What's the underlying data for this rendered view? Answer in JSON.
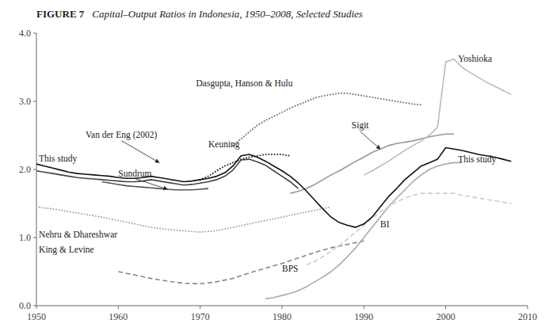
{
  "chart_data": {
    "type": "line",
    "title": "FIGURE 7",
    "subtitle": "Capital–Output Ratios in Indonesia, 1950–2008, Selected Studies",
    "xlim": [
      1950,
      2010
    ],
    "xticks": [
      1950,
      1960,
      1970,
      1980,
      1990,
      2000,
      2010
    ],
    "ylim": [
      0.0,
      4.0
    ],
    "yticks": [
      {
        "value": 0.0,
        "label": "0.0"
      },
      {
        "value": 1.0,
        "label": "1.0"
      },
      {
        "value": 2.0,
        "label": "2.0"
      },
      {
        "value": 3.0,
        "label": "3.0"
      },
      {
        "value": 4.0,
        "label": "4.0"
      }
    ],
    "grid": false,
    "series": [
      {
        "color": "#aaaaaa",
        "line_style": "dotted",
        "x": [
          1950,
          1952,
          1954,
          1956,
          1958,
          1960,
          1962,
          1964,
          1966,
          1968,
          1970,
          1972,
          1974,
          1976,
          1978,
          1980,
          1982,
          1984,
          1986
        ],
        "values": [
          1.45,
          1.42,
          1.38,
          1.34,
          1.3,
          1.25,
          1.2,
          1.15,
          1.12,
          1.1,
          1.08,
          1.1,
          1.15,
          1.2,
          1.25,
          1.3,
          1.35,
          1.4,
          1.45
        ]
      },
      {
        "color": "#888888",
        "line_style": "dashed",
        "x": [
          1960,
          1962,
          1964,
          1966,
          1968,
          1970,
          1972,
          1974,
          1976,
          1978,
          1980,
          1982,
          1984,
          1986,
          1988,
          1990
        ],
        "values": [
          0.5,
          0.45,
          0.4,
          0.36,
          0.33,
          0.32,
          0.35,
          0.4,
          0.48,
          0.55,
          0.62,
          0.7,
          0.78,
          0.85,
          0.9,
          0.95
        ]
      },
      {
        "color": "#aaaaaa",
        "line_style": "solid",
        "x": [
          1978,
          1979,
          1980,
          1981,
          1982,
          1983,
          1984,
          1985,
          1986,
          1987,
          1988,
          1989,
          1990,
          1991,
          1992,
          1993,
          1994,
          1995,
          1996,
          1997,
          1998,
          1999,
          2000,
          2001,
          2002
        ],
        "values": [
          0.1,
          0.12,
          0.15,
          0.18,
          0.22,
          0.28,
          0.35,
          0.42,
          0.5,
          0.6,
          0.72,
          0.85,
          1.0,
          1.15,
          1.3,
          1.45,
          1.58,
          1.7,
          1.82,
          1.92,
          2.0,
          2.05,
          2.08,
          2.1,
          2.1
        ]
      },
      {
        "color": "#cccccc",
        "line_style": "dashed",
        "x": [
          1983,
          1984,
          1985,
          1986,
          1987,
          1988,
          1989,
          1990,
          1991,
          1992,
          1993,
          1994,
          1995,
          1996,
          1997,
          1998,
          1999,
          2000,
          2001,
          2002,
          2003,
          2004,
          2005,
          2006,
          2007,
          2008
        ],
        "values": [
          0.6,
          0.65,
          0.72,
          0.8,
          0.88,
          0.98,
          1.08,
          1.18,
          1.28,
          1.38,
          1.45,
          1.52,
          1.58,
          1.62,
          1.65,
          1.65,
          1.65,
          1.65,
          1.65,
          1.62,
          1.6,
          1.58,
          1.56,
          1.54,
          1.52,
          1.5
        ]
      },
      {
        "color": "#777777",
        "line_style": "dotted",
        "x": [
          1974,
          1975,
          1976,
          1977,
          1978,
          1979,
          1980,
          1981,
          1982,
          1983,
          1984,
          1985,
          1986,
          1987,
          1988,
          1989,
          1990,
          1991,
          1992,
          1993,
          1994,
          1995,
          1996,
          1997
        ],
        "values": [
          2.35,
          2.45,
          2.55,
          2.65,
          2.72,
          2.78,
          2.84,
          2.9,
          2.95,
          3.0,
          3.05,
          3.08,
          3.1,
          3.12,
          3.12,
          3.1,
          3.08,
          3.06,
          3.04,
          3.02,
          3.0,
          2.98,
          2.96,
          2.95
        ]
      },
      {
        "color": "#555555",
        "line_style": "solid",
        "x": [
          1958,
          1959,
          1960,
          1961,
          1962,
          1963,
          1964,
          1965,
          1966,
          1967,
          1968,
          1969,
          1970,
          1971
        ],
        "values": [
          1.82,
          1.8,
          1.78,
          1.76,
          1.75,
          1.74,
          1.73,
          1.72,
          1.71,
          1.7,
          1.7,
          1.7,
          1.71,
          1.72
        ]
      },
      {
        "color": "#444444",
        "line_style": "solid",
        "x": [
          1950,
          1951,
          1952,
          1953,
          1954,
          1955,
          1956,
          1957,
          1958,
          1959,
          1960,
          1961,
          1962,
          1963,
          1964,
          1965,
          1966,
          1967,
          1968,
          1969,
          1970,
          1971,
          1972,
          1973,
          1974,
          1975,
          1976,
          1977,
          1978,
          1979,
          1980,
          1981,
          1982
        ],
        "values": [
          1.98,
          1.96,
          1.94,
          1.92,
          1.9,
          1.88,
          1.87,
          1.86,
          1.85,
          1.84,
          1.83,
          1.82,
          1.82,
          1.83,
          1.85,
          1.83,
          1.81,
          1.79,
          1.77,
          1.78,
          1.8,
          1.82,
          1.85,
          1.9,
          1.99,
          2.14,
          2.15,
          2.11,
          2.06,
          1.98,
          1.9,
          1.82,
          1.72
        ]
      },
      {
        "color": "#333333",
        "line_style": "dotted",
        "x": [
          1970,
          1971,
          1972,
          1973,
          1974,
          1975,
          1976,
          1977,
          1978,
          1979,
          1980,
          1981
        ],
        "values": [
          1.85,
          1.9,
          1.98,
          2.05,
          2.1,
          2.15,
          2.18,
          2.2,
          2.22,
          2.22,
          2.22,
          2.2
        ]
      },
      {
        "color": "#999999",
        "line_style": "solid",
        "x": [
          1981,
          1982,
          1983,
          1984,
          1985,
          1986,
          1987,
          1988,
          1989,
          1990,
          1991,
          1992,
          1993,
          1994,
          1995,
          1996,
          1997,
          1998,
          1999,
          2000,
          2001
        ],
        "values": [
          1.65,
          1.68,
          1.72,
          1.78,
          1.85,
          1.92,
          1.98,
          2.05,
          2.12,
          2.18,
          2.25,
          2.3,
          2.35,
          2.38,
          2.4,
          2.42,
          2.45,
          2.48,
          2.5,
          2.52,
          2.52
        ]
      },
      {
        "color": "#bbbbbb",
        "line_style": "solid",
        "x": [
          1990,
          1991,
          1992,
          1993,
          1994,
          1995,
          1996,
          1997,
          1998,
          1999,
          2000,
          2001,
          2002,
          2003,
          2004,
          2005,
          2006,
          2007,
          2008
        ],
        "values": [
          1.92,
          1.98,
          2.05,
          2.12,
          2.2,
          2.28,
          2.35,
          2.42,
          2.5,
          2.62,
          3.58,
          3.62,
          3.5,
          3.42,
          3.35,
          3.28,
          3.22,
          3.16,
          3.1
        ]
      },
      {
        "color": "#111111",
        "line_style": "solid",
        "x": [
          1950,
          1951,
          1952,
          1953,
          1954,
          1955,
          1956,
          1957,
          1958,
          1959,
          1960,
          1961,
          1962,
          1963,
          1964,
          1965,
          1966,
          1967,
          1968,
          1969,
          1970,
          1971,
          1972,
          1973,
          1974,
          1975,
          1976,
          1977,
          1978,
          1979,
          1980,
          1981,
          1982,
          1983,
          1984,
          1985,
          1986,
          1987,
          1988,
          1989,
          1990,
          1991,
          1992,
          1993,
          1994,
          1995,
          1996,
          1997,
          1998,
          1999,
          2000,
          2001,
          2002,
          2003,
          2004,
          2005,
          2006,
          2007,
          2008
        ],
        "values": [
          2.08,
          2.05,
          2.02,
          1.99,
          1.96,
          1.94,
          1.93,
          1.92,
          1.91,
          1.9,
          1.88,
          1.87,
          1.87,
          1.88,
          1.9,
          1.88,
          1.86,
          1.84,
          1.82,
          1.83,
          1.85,
          1.87,
          1.9,
          1.95,
          2.05,
          2.2,
          2.22,
          2.18,
          2.12,
          2.05,
          1.98,
          1.9,
          1.8,
          1.68,
          1.55,
          1.42,
          1.3,
          1.22,
          1.18,
          1.15,
          1.2,
          1.3,
          1.45,
          1.6,
          1.72,
          1.85,
          1.95,
          2.05,
          2.1,
          2.15,
          2.32,
          2.3,
          2.28,
          2.25,
          2.22,
          2.2,
          2.18,
          2.15,
          2.12
        ]
      }
    ],
    "annotations": [
      {
        "text": "This study",
        "x": 1950.3,
        "y": 2.12
      },
      {
        "text": "Van der Eng (2002)",
        "x": 1956,
        "y": 2.47,
        "arrow": [
          1965,
          2.1
        ]
      },
      {
        "text": "Sundrum",
        "x": 1960,
        "y": 1.9,
        "arrow": [
          1966,
          1.71
        ]
      },
      {
        "text": "Keuning",
        "x": 1971,
        "y": 2.32
      },
      {
        "text": "Dasgupta, Hanson & Hulu",
        "x": 1969.5,
        "y": 3.22
      },
      {
        "text": "Nehru & Dhareshwar",
        "x": 1950.3,
        "y": 1.0
      },
      {
        "text": "King & Levine",
        "x": 1950.3,
        "y": 0.78
      },
      {
        "text": "Sigit",
        "x": 1988.5,
        "y": 2.6,
        "arrow": [
          1992,
          2.3
        ]
      },
      {
        "text": "Yoshioka",
        "x": 2001.5,
        "y": 3.58
      },
      {
        "text": "This study",
        "x": 2001.5,
        "y": 2.1
      },
      {
        "text": "BI",
        "x": 1992,
        "y": 1.15
      },
      {
        "text": "BPS",
        "x": 1980,
        "y": 0.5
      }
    ]
  }
}
